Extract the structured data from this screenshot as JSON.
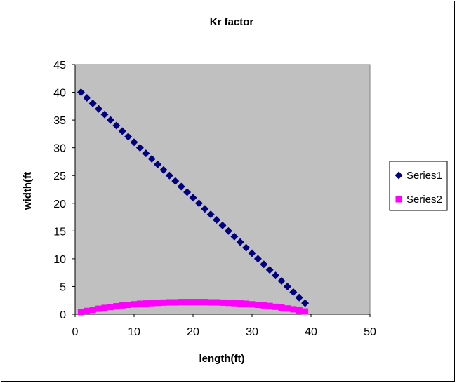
{
  "chart_data": {
    "type": "scatter",
    "title": "Kr factor",
    "xlabel": "length(ft)",
    "ylabel": "width(ft",
    "xlim": [
      0,
      50
    ],
    "ylim": [
      0,
      45
    ],
    "xticks": [
      "0",
      "10",
      "20",
      "30",
      "40",
      "50"
    ],
    "yticks": [
      "0",
      "5",
      "10",
      "15",
      "20",
      "25",
      "30",
      "35",
      "40",
      "45"
    ],
    "grid": false,
    "legend_position": "right",
    "plot_background": "#C0C0C0",
    "series": [
      {
        "name": "Series1",
        "marker": "diamond",
        "color": "#000080",
        "x": [
          1,
          2,
          3,
          4,
          5,
          6,
          7,
          8,
          9,
          10,
          11,
          12,
          13,
          14,
          15,
          16,
          17,
          18,
          19,
          20,
          21,
          22,
          23,
          24,
          25,
          26,
          27,
          28,
          29,
          30,
          31,
          32,
          33,
          34,
          35,
          36,
          37,
          38,
          39
        ],
        "y": [
          40,
          39,
          38,
          37,
          36,
          35,
          34,
          33,
          32,
          31,
          30,
          29,
          28,
          27,
          26,
          25,
          24,
          23,
          22,
          21,
          20,
          19,
          18,
          17,
          16,
          15,
          14,
          13,
          12,
          11,
          10,
          9,
          8,
          7,
          6,
          5,
          4,
          3,
          2
        ]
      },
      {
        "name": "Series2",
        "marker": "square",
        "color": "#FF00FF",
        "x": [
          1,
          2,
          3,
          4,
          5,
          6,
          7,
          8,
          9,
          10,
          11,
          12,
          13,
          14,
          15,
          16,
          17,
          18,
          19,
          20,
          21,
          22,
          23,
          24,
          25,
          26,
          27,
          28,
          29,
          30,
          31,
          32,
          33,
          34,
          35,
          36,
          37,
          38,
          39
        ],
        "y": [
          0.4,
          0.6,
          0.8,
          1.0,
          1.15,
          1.3,
          1.45,
          1.6,
          1.7,
          1.8,
          1.9,
          1.95,
          2.0,
          2.05,
          2.1,
          2.15,
          2.15,
          2.2,
          2.2,
          2.2,
          2.2,
          2.2,
          2.15,
          2.15,
          2.1,
          2.05,
          2.0,
          1.95,
          1.9,
          1.8,
          1.7,
          1.6,
          1.5,
          1.35,
          1.2,
          1.05,
          0.9,
          0.7,
          0.5
        ]
      }
    ]
  }
}
